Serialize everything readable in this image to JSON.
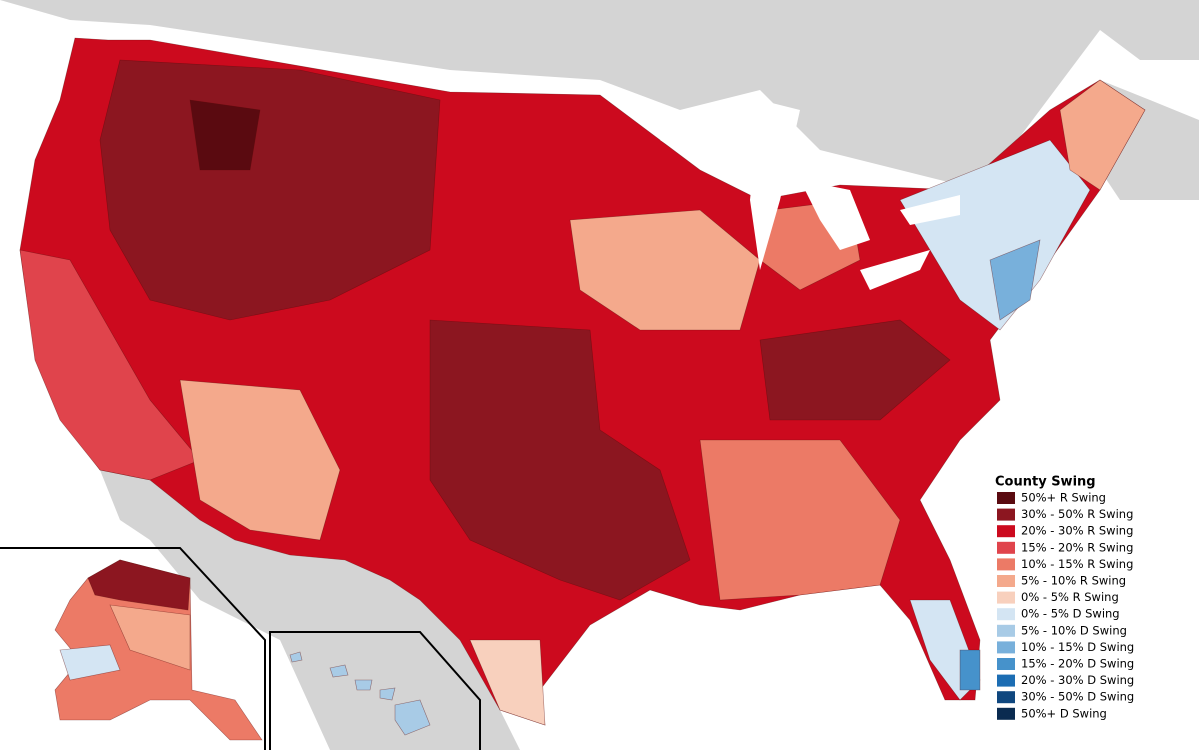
{
  "legend": {
    "title": "County Swing",
    "items": [
      {
        "label": "50%+ R Swing",
        "color": "#5a0a10"
      },
      {
        "label": "30% - 50% R Swing",
        "color": "#8c1620"
      },
      {
        "label": "20% - 30% R Swing",
        "color": "#cc0a1e"
      },
      {
        "label": "15% - 20% R Swing",
        "color": "#e0444c"
      },
      {
        "label": "10% - 15% R Swing",
        "color": "#ec7a66"
      },
      {
        "label": "5% - 10% R Swing",
        "color": "#f4a98c"
      },
      {
        "label": "0% - 5% R Swing",
        "color": "#f8d0bd"
      },
      {
        "label": "0% - 5% D Swing",
        "color": "#d4e5f3"
      },
      {
        "label": "5% - 10% D Swing",
        "color": "#a8cbe6"
      },
      {
        "label": "10% - 15% D Swing",
        "color": "#78b0db"
      },
      {
        "label": "15% - 20% D Swing",
        "color": "#4692cb"
      },
      {
        "label": "20% - 30% D Swing",
        "color": "#1c6db3"
      },
      {
        "label": "30% - 50% D Swing",
        "color": "#0f477f"
      },
      {
        "label": "50%+ D Swing",
        "color": "#0a2b50"
      }
    ]
  }
}
